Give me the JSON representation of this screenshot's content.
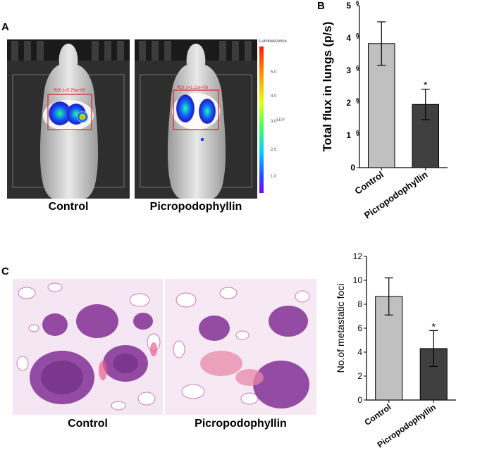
{
  "panels": {
    "a": "A",
    "b": "B",
    "c": "C"
  },
  "imaging": {
    "control_label": "Control",
    "ppp_label": "Picropodophyllin",
    "roi_control": "ROI 1=5.70e+06",
    "roi_ppp": "ROI 1=1.11e+06",
    "colorbar_title": "Luminescence",
    "colorbar_ticks": [
      "5.0",
      "4.0",
      "3.0",
      "2.0",
      "1.0"
    ],
    "colorbar_unit": "x10⁶"
  },
  "histology": {
    "control_label": "Control",
    "ppp_label": "Picropodophyllin"
  },
  "chart_data": [
    {
      "type": "bar",
      "categories": [
        "Control",
        "Picropodophyllin"
      ],
      "values": [
        3.83,
        1.95
      ],
      "errors": [
        0.67,
        0.47
      ],
      "significance": [
        "",
        "*"
      ],
      "ylabel": "Total flux in lungs (p/s)",
      "yticks": [
        "0",
        "1",
        "2",
        "3",
        "4",
        "5"
      ],
      "ytick_exponent": "6",
      "ylim": [
        0,
        5
      ],
      "colors": [
        "#c0c0c0",
        "#404040"
      ]
    },
    {
      "type": "bar",
      "categories": [
        "Control",
        "Picropodophyllin"
      ],
      "values": [
        8.65,
        4.3
      ],
      "errors": [
        1.55,
        1.5
      ],
      "significance": [
        "",
        "*"
      ],
      "ylabel": "No.of metastatic foci",
      "yticks": [
        "0",
        "2",
        "4",
        "6",
        "8",
        "10",
        "12"
      ],
      "ylim": [
        0,
        12
      ],
      "colors": [
        "#c0c0c0",
        "#404040"
      ]
    }
  ]
}
